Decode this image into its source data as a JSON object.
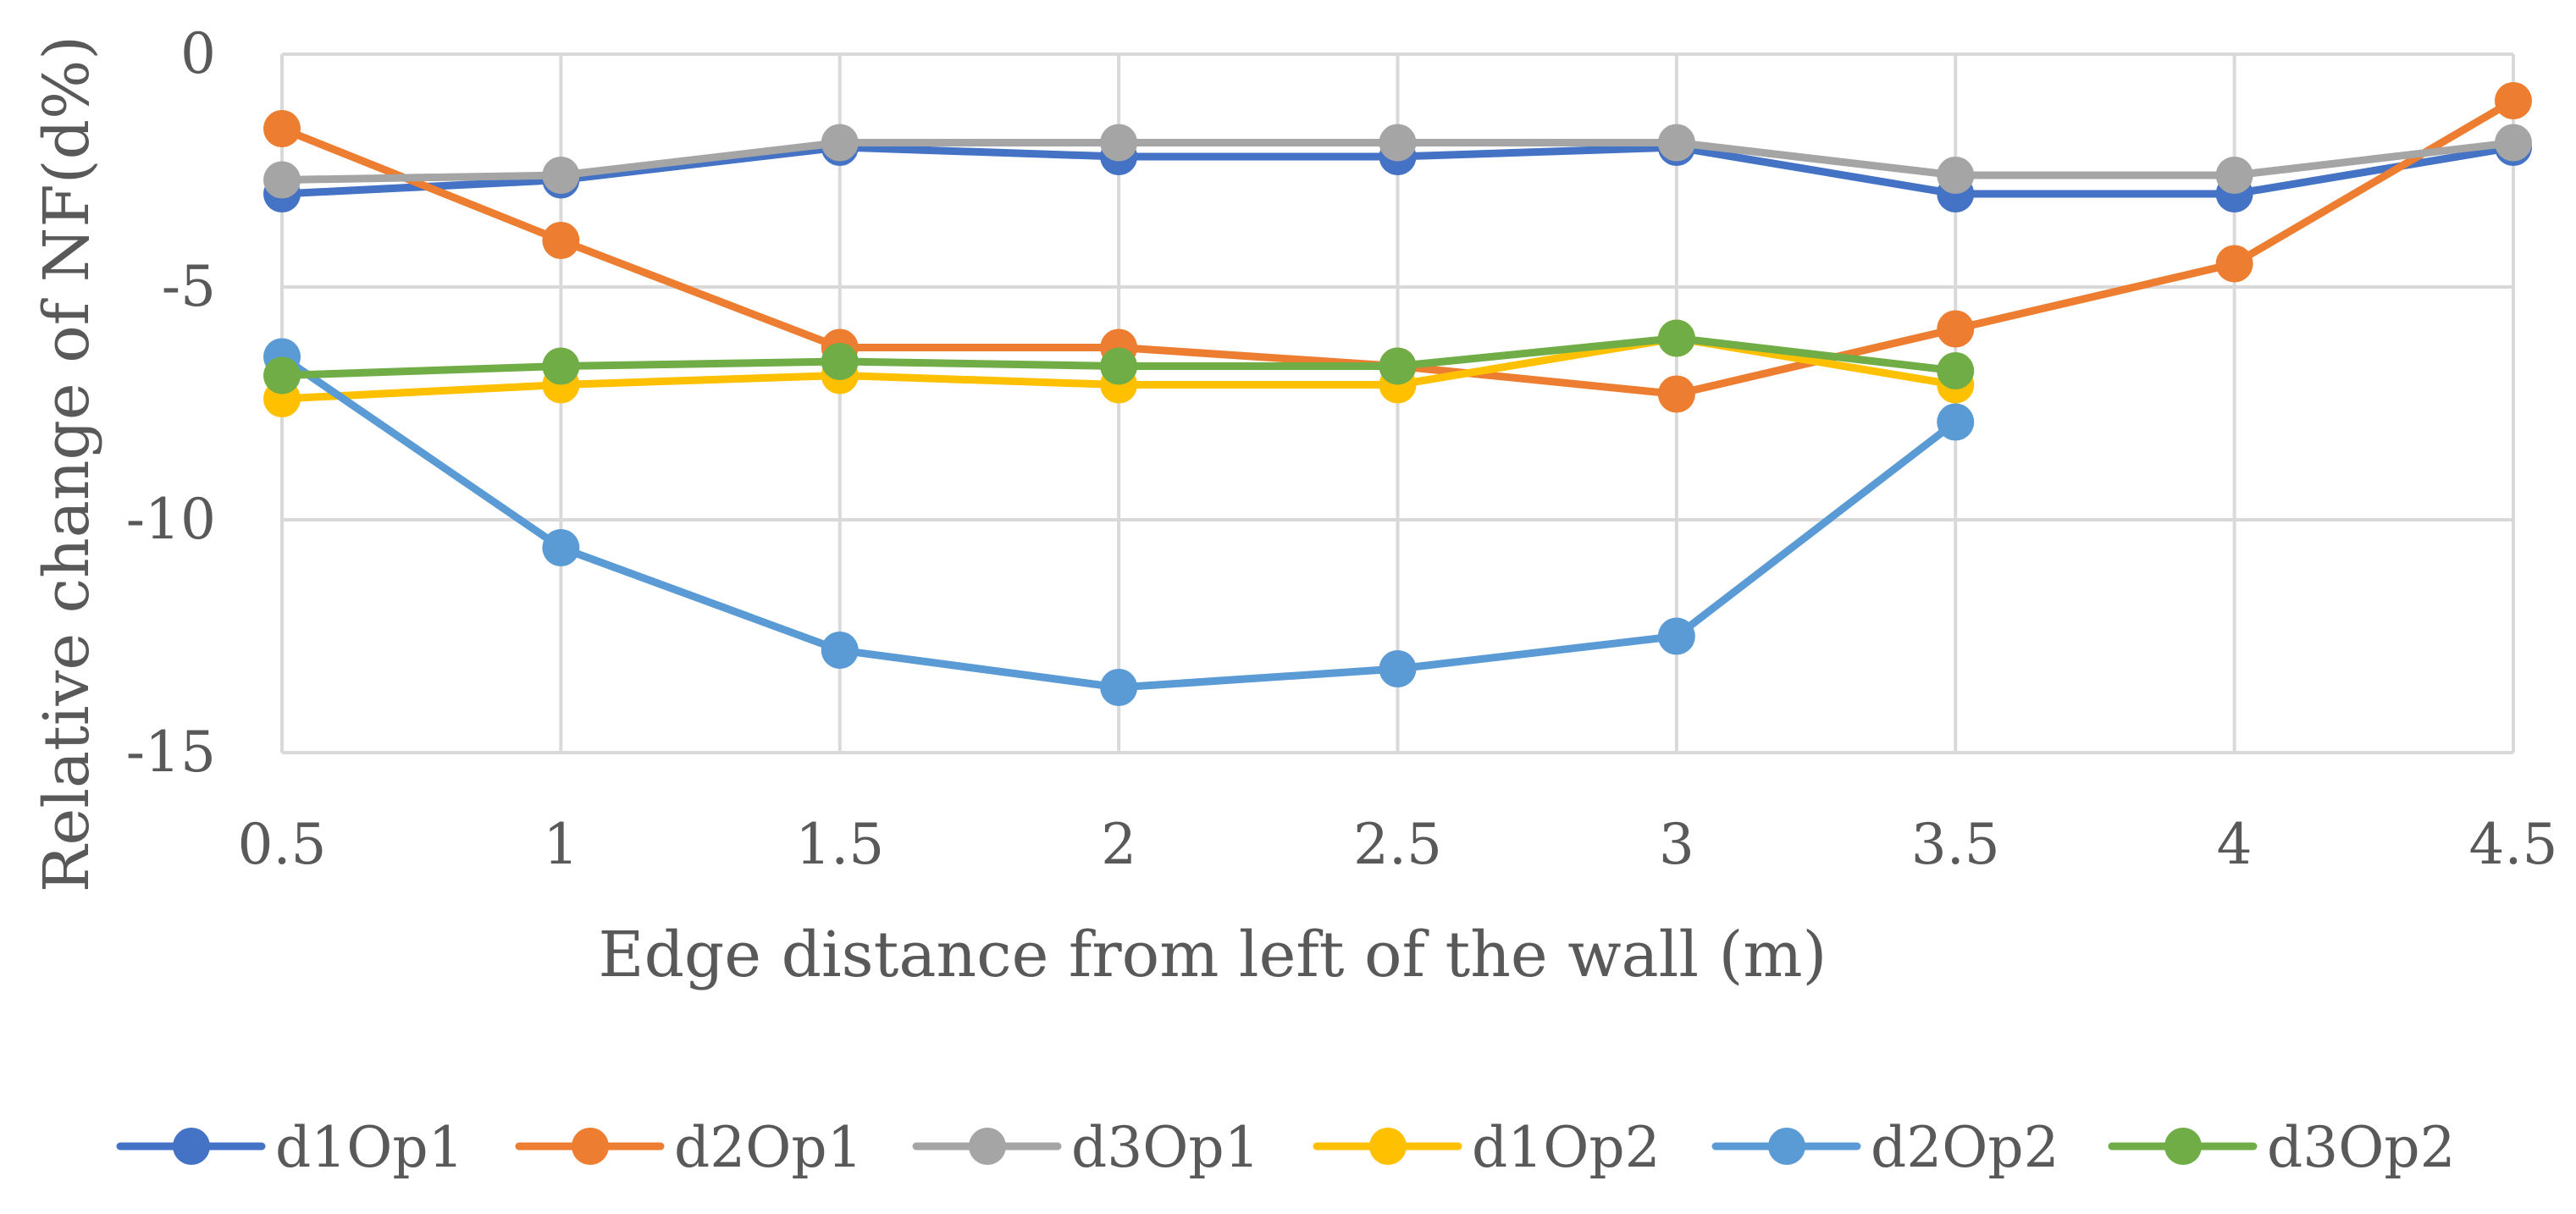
{
  "chart_data": {
    "type": "line",
    "title": "",
    "xlabel": "Edge distance from left of the wall (m)",
    "ylabel": "Relative change of NF(d%)",
    "x": [
      0.5,
      1,
      1.5,
      2,
      2.5,
      3,
      3.5,
      4,
      4.5
    ],
    "x_ticks": [
      "0.5",
      "1",
      "1.5",
      "2",
      "2.5",
      "3",
      "3.5",
      "4",
      "4.5"
    ],
    "xlim": [
      0.5,
      4.5
    ],
    "ylim": [
      -15,
      0
    ],
    "y_ticks": [
      0,
      -5,
      -10,
      -15
    ],
    "y_tick_labels": [
      "0",
      "-5",
      "-10",
      "-15"
    ],
    "grid": true,
    "legend_position": "bottom",
    "series": [
      {
        "name": "d1Op1",
        "color": "#4472C4",
        "values": [
          -3.0,
          -2.7,
          -2.0,
          -2.2,
          -2.2,
          -2.0,
          -3.0,
          -3.0,
          -2.0
        ]
      },
      {
        "name": "d2Op1",
        "color": "#ED7D31",
        "values": [
          -1.6,
          -4.0,
          -6.3,
          -6.3,
          -6.7,
          -7.3,
          -5.9,
          -4.5,
          -1.0
        ]
      },
      {
        "name": "d3Op1",
        "color": "#A5A5A5",
        "values": [
          -2.7,
          -2.6,
          -1.9,
          -1.9,
          -1.9,
          -1.9,
          -2.6,
          -2.6,
          -1.9
        ]
      },
      {
        "name": "d1Op2",
        "color": "#FFC000",
        "values": [
          -7.4,
          -7.1,
          -6.9,
          -7.1,
          -7.1,
          -6.1,
          -7.1,
          null,
          null
        ]
      },
      {
        "name": "d2Op2",
        "color": "#5B9BD5",
        "values": [
          -6.5,
          -10.6,
          -12.8,
          -13.6,
          -13.2,
          -12.5,
          -7.9,
          null,
          null
        ]
      },
      {
        "name": "d3Op2",
        "color": "#70AD47",
        "values": [
          -6.9,
          -6.7,
          -6.6,
          -6.7,
          -6.7,
          -6.1,
          -6.8,
          null,
          null
        ]
      }
    ]
  }
}
